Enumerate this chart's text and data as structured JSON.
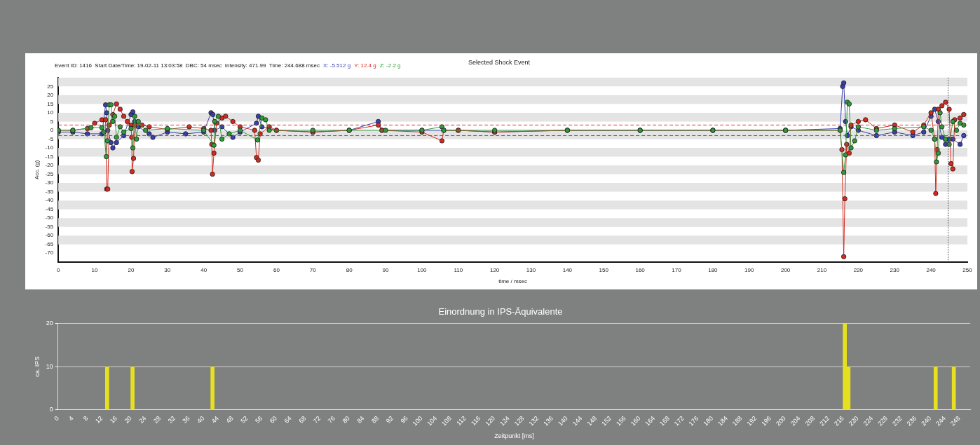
{
  "chart_data": [
    {
      "type": "line",
      "title": "Selected Shock Event",
      "xlabel": "time / msec",
      "ylabel": "Acc. (g)",
      "annotations": [
        "Event ID: 1416  Start Date/Time: 19-02-11 13:03:58  DBC: 54 msec  Intensity: 471.99  Time: 244.688 msec",
        "X: -5.512 g",
        "Y: 12.4 g",
        "Z: -2.2 g"
      ],
      "xlim": [
        0,
        250
      ],
      "xticks": [
        0,
        10,
        20,
        30,
        40,
        50,
        60,
        70,
        80,
        90,
        100,
        110,
        120,
        130,
        140,
        150,
        160,
        170,
        180,
        190,
        200,
        210,
        220,
        230,
        240,
        250
      ],
      "ylim": [
        -75,
        30
      ],
      "yticks": [
        -70,
        -65,
        -60,
        -55,
        -50,
        -45,
        -40,
        -35,
        -30,
        -25,
        -20,
        -15,
        -10,
        -5,
        0,
        5,
        10,
        15,
        20,
        25
      ],
      "marker": "circle",
      "line_style": "solid",
      "bands": [
        {
          "axis": "y",
          "from": 25,
          "to": 30,
          "color": "#e4e4e4"
        },
        {
          "axis": "y",
          "from": 15,
          "to": 20,
          "color": "#e4e4e4"
        },
        {
          "axis": "y",
          "from": 5,
          "to": 10,
          "color": "#e4e4e4"
        },
        {
          "axis": "y",
          "from": -5,
          "to": 0,
          "color": "#e4e4e4"
        },
        {
          "axis": "y",
          "from": -15,
          "to": -10,
          "color": "#e4e4e4"
        },
        {
          "axis": "y",
          "from": -25,
          "to": -20,
          "color": "#e4e4e4"
        },
        {
          "axis": "y",
          "from": -35,
          "to": -30,
          "color": "#e4e4e4"
        },
        {
          "axis": "y",
          "from": -45,
          "to": -40,
          "color": "#e4e4e4"
        },
        {
          "axis": "y",
          "from": -55,
          "to": -50,
          "color": "#e4e4e4"
        },
        {
          "axis": "y",
          "from": -65,
          "to": -60,
          "color": "#e4e4e4"
        }
      ],
      "ref_lines": [
        {
          "axis": "y",
          "value": 3,
          "color": "#e03030",
          "line_style": "dashed"
        },
        {
          "axis": "y",
          "value": -3,
          "color": "#e03030",
          "line_style": "dashed"
        },
        {
          "axis": "x",
          "value": 244.7,
          "color": "#333333",
          "line_style": "dotted"
        }
      ],
      "series": [
        {
          "color": "#3a3fb0",
          "x": [
            0,
            4,
            8,
            12,
            13,
            13.3,
            13.6,
            14.5,
            15,
            16,
            18,
            20,
            20.5,
            21,
            22,
            25,
            26,
            30,
            35,
            40,
            42,
            42.5,
            43,
            45,
            48,
            50,
            54.5,
            55,
            56,
            60,
            70,
            80,
            88,
            89,
            100,
            110,
            120,
            140,
            160,
            180,
            200,
            215,
            215.7,
            216,
            216.5,
            217,
            218,
            220,
            225,
            230,
            235,
            238,
            240,
            241,
            242,
            243,
            244,
            245,
            246,
            248,
            249
          ],
          "values": [
            -1,
            -1,
            -2,
            -2,
            14.5,
            10,
            0,
            -7,
            -10,
            -7,
            -3,
            9,
            10.5,
            5,
            2,
            -2,
            -4,
            -1,
            -2,
            -1,
            10,
            9,
            0,
            2,
            -4,
            -1,
            4,
            8,
            2,
            0,
            -1,
            0,
            5,
            0,
            0,
            0,
            -1,
            0,
            0,
            0,
            0,
            1,
            25,
            27,
            5,
            -3,
            2,
            0,
            -3,
            -1,
            -3,
            -1,
            8,
            12,
            5,
            -4,
            -8,
            -5,
            -5,
            -8,
            -3
          ]
        },
        {
          "color": "#d42a20",
          "x": [
            0,
            4,
            8,
            10,
            12,
            13,
            13.3,
            13.6,
            14,
            15,
            16,
            17,
            18,
            19,
            20,
            20.2,
            20.3,
            20.7,
            21,
            23,
            25,
            30,
            36,
            40,
            42,
            42.2,
            42.4,
            42.8,
            43.5,
            45,
            46,
            48,
            50,
            54,
            54.5,
            55,
            55.5,
            58,
            60,
            70,
            80,
            88,
            89,
            100,
            105.5,
            106,
            110,
            120,
            140,
            160,
            180,
            200,
            215,
            215.5,
            216,
            216.3,
            216.8,
            217.5,
            218,
            220,
            222,
            225,
            230,
            235,
            238,
            240,
            241,
            241.3,
            241.7,
            242,
            243,
            244,
            245,
            245.5,
            246,
            246.5,
            248,
            249
          ],
          "values": [
            0,
            0,
            1,
            4,
            6,
            6,
            -33.5,
            -33.5,
            3,
            9,
            15,
            12,
            8,
            5,
            3,
            -4,
            -23.5,
            -16,
            3,
            3,
            2,
            0.5,
            2,
            1,
            0,
            -8,
            -25,
            -13,
            4,
            7,
            8,
            5,
            2,
            0,
            -15.5,
            -17,
            -2,
            2,
            0,
            -1,
            0,
            3,
            0,
            -1,
            -6,
            0,
            0,
            -1,
            0,
            0,
            0,
            0,
            0,
            -11,
            -72,
            -39,
            -8,
            -13,
            3,
            5,
            6,
            1,
            3,
            -1,
            3,
            10,
            -5,
            -36,
            -11,
            12,
            14,
            16,
            12,
            -19,
            -22,
            6,
            7,
            9
          ]
        },
        {
          "color": "#2f9a3a",
          "x": [
            0,
            4,
            9,
            12,
            12.5,
            13.2,
            13.5,
            14,
            14.5,
            15,
            15.5,
            16,
            17,
            18,
            20,
            20.5,
            21,
            21.5,
            22,
            24,
            30,
            40,
            42.8,
            43,
            44,
            45,
            47,
            50,
            54.8,
            56,
            57,
            58,
            70,
            80,
            90,
            100,
            105.5,
            106,
            120,
            140,
            160,
            180,
            200,
            215,
            216,
            216.5,
            217,
            217.5,
            218,
            219,
            220,
            225,
            230,
            238,
            240,
            241,
            241.5,
            242,
            242.5,
            243,
            244,
            245,
            246,
            247,
            248,
            249
          ],
          "values": [
            0,
            0,
            1.5,
            1.5,
            -1,
            -15,
            -6,
            14.5,
            14.5,
            5,
            8,
            -4,
            2,
            -1,
            1,
            -10,
            8,
            -5,
            5,
            0,
            1,
            0,
            -8.5,
            5,
            8,
            -5,
            -2,
            0,
            -5.5,
            7,
            6,
            0,
            0,
            0,
            0,
            0,
            2,
            0,
            0,
            0,
            0,
            0,
            0,
            0,
            -24,
            -14,
            16,
            15,
            -10,
            -6,
            2,
            0,
            1,
            2,
            0,
            -5,
            -18,
            -13,
            10,
            2,
            -5,
            -8,
            5,
            0,
            4,
            3
          ]
        }
      ]
    },
    {
      "type": "bar",
      "title": "Einordnung in IPS-Äquivalente",
      "xlabel": "Zeitpunkt [ms]",
      "ylabel": "ca. IPS",
      "color": "#e6e020",
      "grid": "y",
      "x": [
        13.5,
        20.5,
        42.5,
        216.5,
        217.5,
        241.5,
        246.5
      ],
      "values": [
        10,
        10,
        10,
        20,
        10,
        10,
        10
      ],
      "xlim": [
        0,
        251
      ],
      "xticks": [
        0,
        4,
        8,
        12,
        16,
        20,
        24,
        28,
        32,
        36,
        40,
        44,
        48,
        52,
        56,
        60,
        64,
        68,
        72,
        76,
        80,
        84,
        88,
        92,
        96,
        100,
        104,
        108,
        112,
        116,
        120,
        124,
        128,
        132,
        136,
        140,
        144,
        148,
        152,
        156,
        160,
        164,
        168,
        172,
        176,
        180,
        184,
        188,
        192,
        196,
        200,
        204,
        208,
        212,
        216,
        220,
        224,
        228,
        232,
        236,
        240,
        244,
        248
      ],
      "ylim": [
        0,
        20
      ],
      "yticks": [
        0,
        10,
        20
      ]
    }
  ]
}
